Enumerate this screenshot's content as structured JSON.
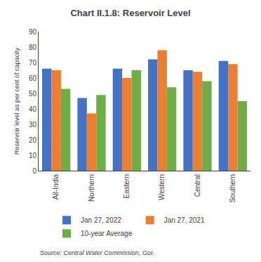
{
  "chart_data": {
    "type": "bar",
    "title": "Chart II.1.8: Reservoir Level",
    "categories": [
      "All-India",
      "Northern",
      "Eastern",
      "Western",
      "Central",
      "Southern"
    ],
    "series": [
      {
        "name": "Jan 27, 2022",
        "color": "#4472c4",
        "values": [
          66,
          47,
          66,
          72,
          65,
          71
        ]
      },
      {
        "name": "Jan 27, 2021",
        "color": "#ed7d31",
        "values": [
          65,
          37,
          60,
          78,
          64,
          69
        ]
      },
      {
        "name": "10-year Average",
        "color": "#70ad47",
        "values": [
          53,
          49,
          65,
          54,
          58,
          45
        ]
      }
    ],
    "ylabel": "Reservoir level as per cent of capacity",
    "ylim": [
      0,
      90
    ],
    "yticks": [
      0,
      10,
      20,
      30,
      40,
      50,
      60,
      70,
      80,
      90
    ],
    "source": "Source: Central Water Commission, GoI.",
    "grid": false,
    "legend": "bottom"
  }
}
